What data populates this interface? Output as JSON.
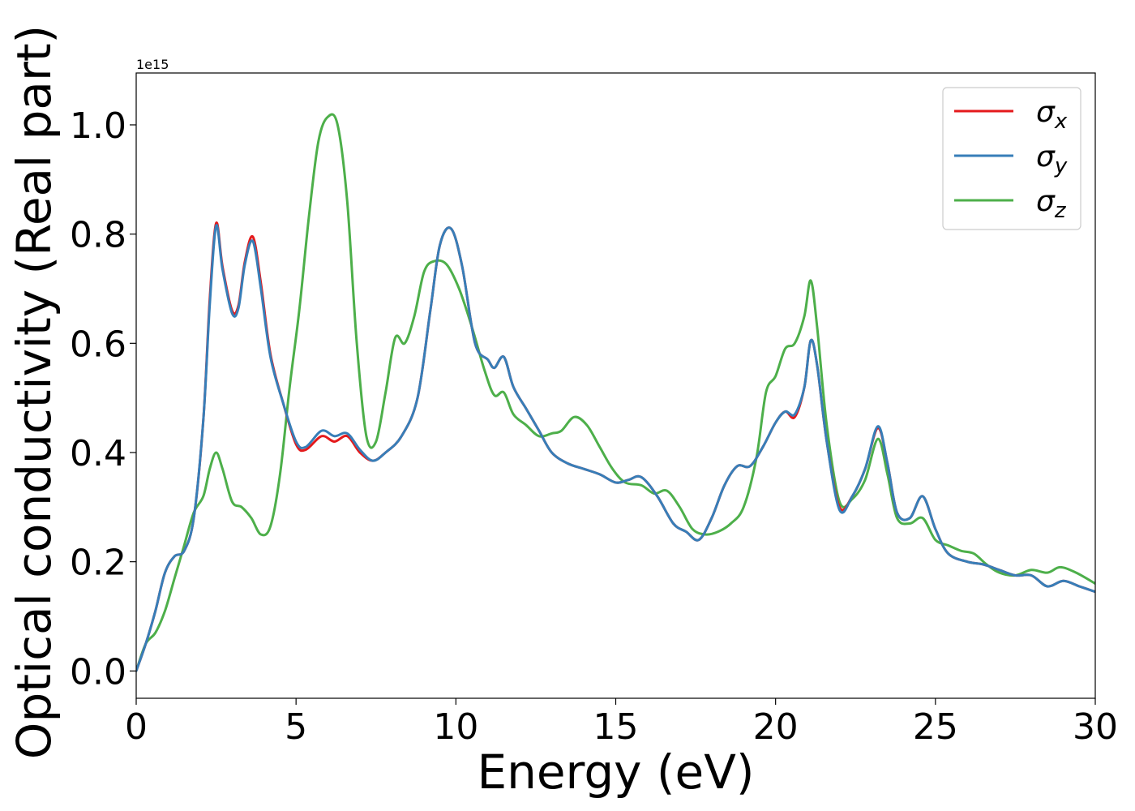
{
  "chart_data": {
    "type": "line",
    "title": "",
    "xlabel": "Energy (eV)",
    "ylabel": "Optical conductivity (Real part)",
    "y_offset_text": "1e15",
    "xlim": [
      0,
      30
    ],
    "ylim": [
      -0.05,
      1.095
    ],
    "x_ticks": [
      0,
      5,
      10,
      15,
      20,
      25,
      30
    ],
    "x_tick_labels": [
      "0",
      "5",
      "10",
      "15",
      "20",
      "25",
      "30"
    ],
    "y_ticks": [
      0.0,
      0.2,
      0.4,
      0.6,
      0.8,
      1.0
    ],
    "y_tick_labels": [
      "0.0",
      "0.2",
      "0.4",
      "0.6",
      "0.8",
      "1.0"
    ],
    "grid": false,
    "legend_position": "top-right",
    "series": [
      {
        "name": "σ",
        "subscript": "x",
        "color": "#e41a1c",
        "points": [
          [
            0,
            0
          ],
          [
            0.3,
            0.05
          ],
          [
            0.6,
            0.11
          ],
          [
            0.9,
            0.18
          ],
          [
            1.2,
            0.21
          ],
          [
            1.5,
            0.22
          ],
          [
            1.8,
            0.28
          ],
          [
            2.1,
            0.46
          ],
          [
            2.3,
            0.68
          ],
          [
            2.5,
            0.82
          ],
          [
            2.7,
            0.74
          ],
          [
            3.0,
            0.66
          ],
          [
            3.2,
            0.67
          ],
          [
            3.4,
            0.75
          ],
          [
            3.65,
            0.795
          ],
          [
            3.9,
            0.71
          ],
          [
            4.2,
            0.58
          ],
          [
            4.6,
            0.49
          ],
          [
            5.0,
            0.415
          ],
          [
            5.3,
            0.405
          ],
          [
            5.8,
            0.43
          ],
          [
            6.2,
            0.42
          ],
          [
            6.6,
            0.43
          ],
          [
            7.0,
            0.4
          ],
          [
            7.4,
            0.385
          ],
          [
            7.8,
            0.4
          ],
          [
            8.3,
            0.43
          ],
          [
            8.8,
            0.5
          ],
          [
            9.2,
            0.66
          ],
          [
            9.5,
            0.78
          ],
          [
            9.85,
            0.81
          ],
          [
            10.2,
            0.74
          ],
          [
            10.6,
            0.6
          ],
          [
            11.0,
            0.57
          ],
          [
            11.2,
            0.555
          ],
          [
            11.5,
            0.575
          ],
          [
            11.8,
            0.52
          ],
          [
            12.2,
            0.48
          ],
          [
            12.6,
            0.44
          ],
          [
            13.0,
            0.4
          ],
          [
            13.5,
            0.38
          ],
          [
            14.0,
            0.37
          ],
          [
            14.5,
            0.36
          ],
          [
            15.0,
            0.345
          ],
          [
            15.4,
            0.35
          ],
          [
            15.8,
            0.355
          ],
          [
            16.3,
            0.32
          ],
          [
            16.8,
            0.27
          ],
          [
            17.2,
            0.255
          ],
          [
            17.6,
            0.24
          ],
          [
            18.0,
            0.28
          ],
          [
            18.4,
            0.34
          ],
          [
            18.8,
            0.375
          ],
          [
            19.2,
            0.375
          ],
          [
            19.6,
            0.41
          ],
          [
            20.0,
            0.455
          ],
          [
            20.3,
            0.475
          ],
          [
            20.6,
            0.465
          ],
          [
            20.9,
            0.52
          ],
          [
            21.1,
            0.605
          ],
          [
            21.3,
            0.56
          ],
          [
            21.6,
            0.42
          ],
          [
            22.0,
            0.3
          ],
          [
            22.4,
            0.32
          ],
          [
            22.8,
            0.37
          ],
          [
            23.2,
            0.445
          ],
          [
            23.5,
            0.38
          ],
          [
            23.8,
            0.29
          ],
          [
            24.2,
            0.28
          ],
          [
            24.6,
            0.32
          ],
          [
            25.0,
            0.26
          ],
          [
            25.4,
            0.215
          ],
          [
            26.0,
            0.2
          ],
          [
            26.5,
            0.195
          ],
          [
            27.0,
            0.185
          ],
          [
            27.5,
            0.175
          ],
          [
            28.0,
            0.175
          ],
          [
            28.5,
            0.155
          ],
          [
            29.0,
            0.165
          ],
          [
            29.5,
            0.155
          ],
          [
            30.0,
            0.145
          ]
        ]
      },
      {
        "name": "σ",
        "subscript": "y",
        "color": "#377eb8",
        "points": [
          [
            0,
            0
          ],
          [
            0.3,
            0.05
          ],
          [
            0.6,
            0.11
          ],
          [
            0.9,
            0.18
          ],
          [
            1.2,
            0.21
          ],
          [
            1.5,
            0.22
          ],
          [
            1.8,
            0.28
          ],
          [
            2.1,
            0.46
          ],
          [
            2.3,
            0.67
          ],
          [
            2.5,
            0.815
          ],
          [
            2.7,
            0.735
          ],
          [
            3.0,
            0.655
          ],
          [
            3.2,
            0.665
          ],
          [
            3.4,
            0.745
          ],
          [
            3.65,
            0.787
          ],
          [
            3.9,
            0.7
          ],
          [
            4.2,
            0.575
          ],
          [
            4.6,
            0.49
          ],
          [
            5.0,
            0.42
          ],
          [
            5.3,
            0.41
          ],
          [
            5.8,
            0.44
          ],
          [
            6.2,
            0.43
          ],
          [
            6.6,
            0.435
          ],
          [
            7.0,
            0.405
          ],
          [
            7.4,
            0.385
          ],
          [
            7.8,
            0.4
          ],
          [
            8.3,
            0.43
          ],
          [
            8.8,
            0.5
          ],
          [
            9.2,
            0.66
          ],
          [
            9.5,
            0.78
          ],
          [
            9.85,
            0.81
          ],
          [
            10.2,
            0.74
          ],
          [
            10.6,
            0.6
          ],
          [
            11.0,
            0.57
          ],
          [
            11.2,
            0.555
          ],
          [
            11.5,
            0.575
          ],
          [
            11.8,
            0.52
          ],
          [
            12.2,
            0.48
          ],
          [
            12.6,
            0.44
          ],
          [
            13.0,
            0.4
          ],
          [
            13.5,
            0.38
          ],
          [
            14.0,
            0.37
          ],
          [
            14.5,
            0.36
          ],
          [
            15.0,
            0.345
          ],
          [
            15.4,
            0.35
          ],
          [
            15.8,
            0.355
          ],
          [
            16.3,
            0.32
          ],
          [
            16.8,
            0.27
          ],
          [
            17.2,
            0.255
          ],
          [
            17.6,
            0.24
          ],
          [
            18.0,
            0.28
          ],
          [
            18.4,
            0.34
          ],
          [
            18.8,
            0.375
          ],
          [
            19.2,
            0.375
          ],
          [
            19.6,
            0.41
          ],
          [
            20.0,
            0.455
          ],
          [
            20.3,
            0.475
          ],
          [
            20.6,
            0.47
          ],
          [
            20.9,
            0.52
          ],
          [
            21.1,
            0.605
          ],
          [
            21.3,
            0.56
          ],
          [
            21.6,
            0.42
          ],
          [
            22.0,
            0.295
          ],
          [
            22.4,
            0.32
          ],
          [
            22.8,
            0.37
          ],
          [
            23.2,
            0.448
          ],
          [
            23.5,
            0.38
          ],
          [
            23.8,
            0.29
          ],
          [
            24.2,
            0.28
          ],
          [
            24.6,
            0.32
          ],
          [
            25.0,
            0.26
          ],
          [
            25.4,
            0.215
          ],
          [
            26.0,
            0.2
          ],
          [
            26.5,
            0.195
          ],
          [
            27.0,
            0.185
          ],
          [
            27.5,
            0.175
          ],
          [
            28.0,
            0.175
          ],
          [
            28.5,
            0.155
          ],
          [
            29.0,
            0.165
          ],
          [
            29.5,
            0.155
          ],
          [
            30.0,
            0.145
          ]
        ]
      },
      {
        "name": "σ",
        "subscript": "z",
        "color": "#4daf4a",
        "points": [
          [
            0,
            0
          ],
          [
            0.3,
            0.05
          ],
          [
            0.6,
            0.07
          ],
          [
            0.9,
            0.11
          ],
          [
            1.2,
            0.17
          ],
          [
            1.5,
            0.23
          ],
          [
            1.8,
            0.29
          ],
          [
            2.1,
            0.32
          ],
          [
            2.3,
            0.37
          ],
          [
            2.5,
            0.4
          ],
          [
            2.7,
            0.37
          ],
          [
            3.0,
            0.31
          ],
          [
            3.3,
            0.3
          ],
          [
            3.6,
            0.28
          ],
          [
            3.9,
            0.25
          ],
          [
            4.2,
            0.265
          ],
          [
            4.5,
            0.36
          ],
          [
            4.8,
            0.52
          ],
          [
            5.1,
            0.66
          ],
          [
            5.4,
            0.83
          ],
          [
            5.7,
            0.97
          ],
          [
            6.0,
            1.015
          ],
          [
            6.3,
            1.0
          ],
          [
            6.6,
            0.86
          ],
          [
            6.9,
            0.6
          ],
          [
            7.2,
            0.43
          ],
          [
            7.5,
            0.42
          ],
          [
            7.8,
            0.51
          ],
          [
            8.1,
            0.61
          ],
          [
            8.4,
            0.6
          ],
          [
            8.7,
            0.65
          ],
          [
            9.0,
            0.73
          ],
          [
            9.3,
            0.75
          ],
          [
            9.7,
            0.745
          ],
          [
            10.1,
            0.7
          ],
          [
            10.5,
            0.63
          ],
          [
            10.9,
            0.55
          ],
          [
            11.2,
            0.505
          ],
          [
            11.5,
            0.51
          ],
          [
            11.8,
            0.47
          ],
          [
            12.2,
            0.45
          ],
          [
            12.6,
            0.43
          ],
          [
            13.0,
            0.435
          ],
          [
            13.3,
            0.44
          ],
          [
            13.7,
            0.465
          ],
          [
            14.1,
            0.45
          ],
          [
            14.5,
            0.41
          ],
          [
            14.9,
            0.37
          ],
          [
            15.3,
            0.345
          ],
          [
            15.8,
            0.34
          ],
          [
            16.2,
            0.325
          ],
          [
            16.6,
            0.33
          ],
          [
            17.0,
            0.3
          ],
          [
            17.4,
            0.26
          ],
          [
            17.8,
            0.25
          ],
          [
            18.2,
            0.255
          ],
          [
            18.6,
            0.27
          ],
          [
            19.0,
            0.3
          ],
          [
            19.4,
            0.39
          ],
          [
            19.7,
            0.51
          ],
          [
            20.0,
            0.54
          ],
          [
            20.3,
            0.59
          ],
          [
            20.6,
            0.6
          ],
          [
            20.9,
            0.65
          ],
          [
            21.1,
            0.715
          ],
          [
            21.3,
            0.63
          ],
          [
            21.6,
            0.45
          ],
          [
            22.0,
            0.31
          ],
          [
            22.4,
            0.315
          ],
          [
            22.8,
            0.35
          ],
          [
            23.2,
            0.425
          ],
          [
            23.5,
            0.36
          ],
          [
            23.8,
            0.28
          ],
          [
            24.2,
            0.27
          ],
          [
            24.6,
            0.28
          ],
          [
            25.0,
            0.24
          ],
          [
            25.4,
            0.23
          ],
          [
            25.8,
            0.22
          ],
          [
            26.2,
            0.215
          ],
          [
            26.6,
            0.195
          ],
          [
            27.0,
            0.18
          ],
          [
            27.5,
            0.175
          ],
          [
            28.0,
            0.185
          ],
          [
            28.5,
            0.18
          ],
          [
            28.9,
            0.19
          ],
          [
            29.4,
            0.18
          ],
          [
            30.0,
            0.16
          ]
        ]
      }
    ]
  }
}
